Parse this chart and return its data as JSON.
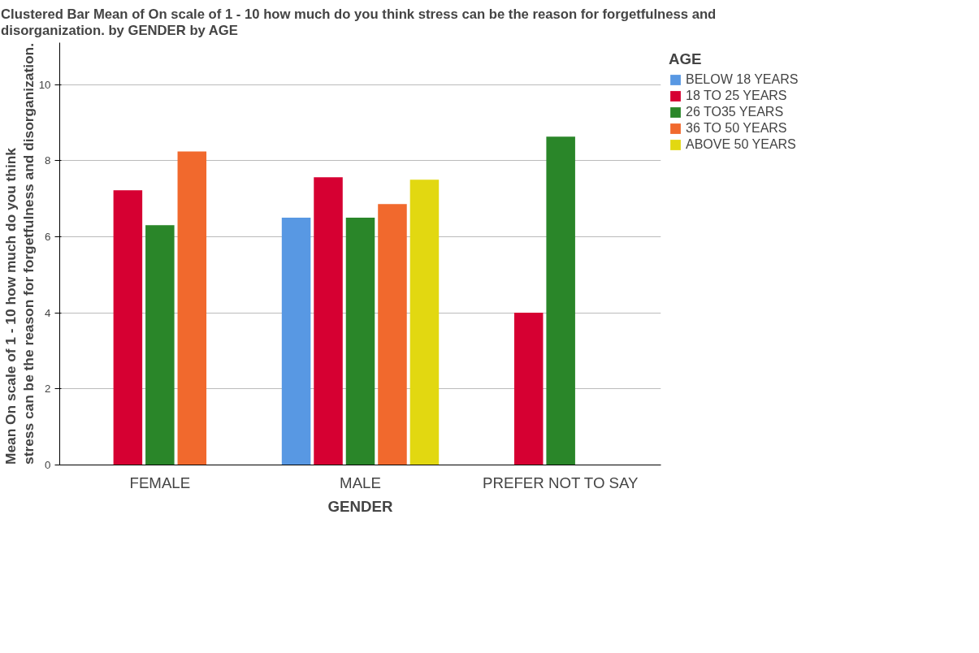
{
  "chart_data": {
    "type": "bar",
    "title": "Clustered Bar Mean of On scale of 1 - 10 how much do you think  stress can be the reason for forgetfulness and disorganization. by GENDER by AGE",
    "xlabel": "GENDER",
    "ylabel": "Mean On scale of 1 - 10 how much do you think stress can be the reason for forgetfulness and disorganization.",
    "legend_title": "AGE",
    "categories": [
      "FEMALE",
      "MALE",
      "PREFER NOT TO SAY"
    ],
    "series": [
      {
        "name": "BELOW 18 YEARS",
        "color": "#5898e3",
        "values": [
          null,
          6.5,
          null
        ]
      },
      {
        "name": "18 TO 25 YEARS",
        "color": "#d60032",
        "values": [
          7.22,
          7.56,
          4.0
        ]
      },
      {
        "name": "26 TO35 YEARS",
        "color": "#2a8629",
        "values": [
          6.3,
          6.5,
          8.63
        ]
      },
      {
        "name": "36 TO 50 YEARS",
        "color": "#f1692d",
        "values": [
          8.24,
          6.86,
          null
        ]
      },
      {
        "name": "ABOVE 50 YEARS",
        "color": "#e2d811",
        "values": [
          null,
          7.5,
          null
        ]
      }
    ],
    "ylim": [
      0,
      11.1
    ],
    "yticks": [
      0,
      2,
      4,
      6,
      8,
      10
    ],
    "grid": "y",
    "legend": "right"
  }
}
